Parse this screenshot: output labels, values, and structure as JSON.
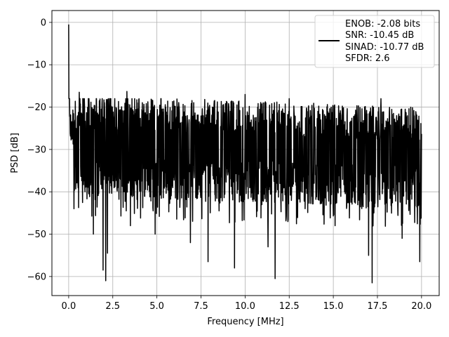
{
  "chart_data": {
    "type": "line",
    "title": "",
    "xlabel": "Frequency [MHz]",
    "ylabel": "PSD [dB]",
    "xlim": [
      -0.95,
      21.0
    ],
    "ylim": [
      -64.5,
      2.8
    ],
    "x_ticks": [
      0.0,
      2.5,
      5.0,
      7.5,
      10.0,
      12.5,
      15.0,
      17.5,
      20.0
    ],
    "x_tick_labels": [
      "0.0",
      "2.5",
      "5.0",
      "7.5",
      "10.0",
      "12.5",
      "15.0",
      "17.5",
      "20.0"
    ],
    "y_ticks": [
      0,
      -10,
      -20,
      -30,
      -40,
      -50,
      -60
    ],
    "y_tick_labels": [
      "0",
      "−10",
      "−20",
      "−30",
      "−40",
      "−50",
      "−60"
    ],
    "grid": true,
    "legend_position": "top-right",
    "line_color": "#000000",
    "series": [
      {
        "name": "ENOB: -2.08 bits\nSNR: -10.45 dB\nSINAD: -10.77 dB\nSFDR: 2.6",
        "legend_lines": [
          "ENOB: -2.08 bits",
          "SNR: -10.45 dB",
          "SINAD: -10.77 dB",
          "SFDR: 2.6"
        ],
        "x_range": [
          0.0,
          20.0
        ],
        "peak": {
          "x": 0.0,
          "y": -0.5
        },
        "low_freq_rolloff": [
          {
            "x": 0.0,
            "y": -0.5
          },
          {
            "x": 0.05,
            "y": -10
          },
          {
            "x": 0.1,
            "y": -17
          },
          {
            "x": 0.3,
            "y": -22
          },
          {
            "x": 1.0,
            "y": -26
          }
        ],
        "noise_floor_mean_start": -28,
        "noise_floor_mean_end": -31,
        "noise_upper_typ": -20,
        "noise_lower_typ": -42,
        "notable_dips": [
          {
            "x": 0.3,
            "y": -44
          },
          {
            "x": 1.4,
            "y": -50
          },
          {
            "x": 1.95,
            "y": -58.5
          },
          {
            "x": 2.1,
            "y": -61
          },
          {
            "x": 2.2,
            "y": -54.5
          },
          {
            "x": 3.5,
            "y": -48
          },
          {
            "x": 4.9,
            "y": -50
          },
          {
            "x": 6.9,
            "y": -52
          },
          {
            "x": 7.9,
            "y": -56.5
          },
          {
            "x": 9.4,
            "y": -58
          },
          {
            "x": 11.3,
            "y": -53
          },
          {
            "x": 11.7,
            "y": -60.5
          },
          {
            "x": 15.1,
            "y": -48
          },
          {
            "x": 17.0,
            "y": -55
          },
          {
            "x": 17.2,
            "y": -61.5
          },
          {
            "x": 18.9,
            "y": -51
          },
          {
            "x": 19.9,
            "y": -56.5
          }
        ],
        "notable_peaks": [
          {
            "x": 0.6,
            "y": -16.5
          },
          {
            "x": 3.3,
            "y": -16.3
          },
          {
            "x": 10.0,
            "y": -17.0
          },
          {
            "x": 12.5,
            "y": -18.0
          },
          {
            "x": 17.7,
            "y": -18.0
          }
        ]
      }
    ]
  }
}
